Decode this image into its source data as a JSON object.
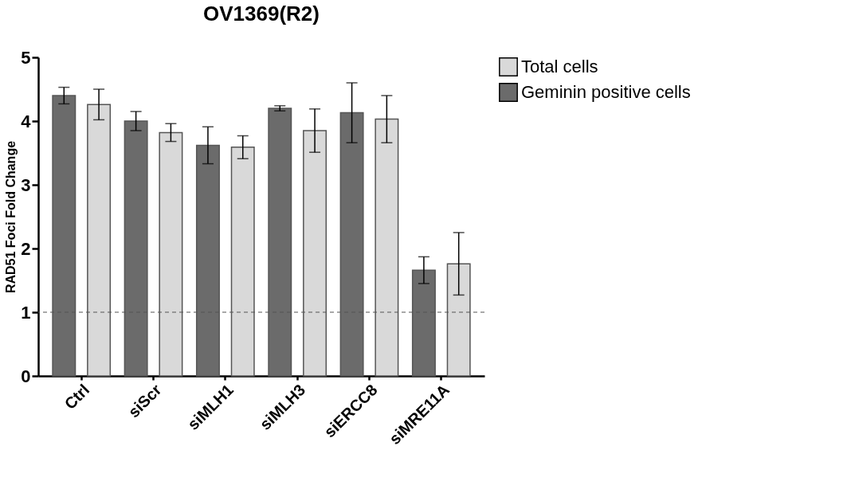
{
  "chart_data": {
    "type": "bar",
    "title": "OV1369(R2)",
    "ylabel": "RAD51 Foci Fold Change",
    "categories": [
      "Ctrl",
      "siScr",
      "siMLH1",
      "siMLH3",
      "siERCC8",
      "siMRE11A"
    ],
    "series": [
      {
        "name": "Geminin positive cells",
        "color": "#6b6b6b",
        "values": [
          4.4,
          4.0,
          3.62,
          4.2,
          4.13,
          1.66
        ],
        "errors": [
          0.13,
          0.15,
          0.29,
          0.04,
          0.47,
          0.21
        ]
      },
      {
        "name": "Total cells",
        "color": "#d9d9d9",
        "values": [
          4.26,
          3.82,
          3.59,
          3.85,
          4.03,
          1.76
        ],
        "errors": [
          0.24,
          0.14,
          0.18,
          0.34,
          0.37,
          0.49
        ]
      }
    ],
    "ylim": [
      0,
      5
    ],
    "yticks": [
      0,
      1,
      2,
      3,
      4,
      5
    ],
    "ref_lines": [
      {
        "axis": "y",
        "value": 1,
        "label": null,
        "color": "#555555",
        "line_style": "dashed"
      }
    ],
    "grid": false,
    "legend": "right"
  }
}
